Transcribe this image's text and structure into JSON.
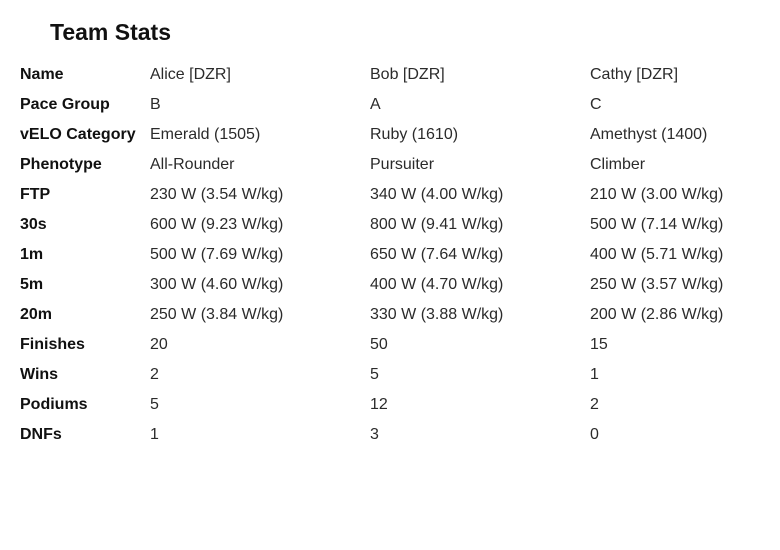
{
  "title": "Team Stats",
  "rows": [
    {
      "label": "Name",
      "values": [
        "Alice [DZR]",
        "Bob [DZR]",
        "Cathy [DZR]"
      ]
    },
    {
      "label": "Pace Group",
      "values": [
        "B",
        "A",
        "C"
      ]
    },
    {
      "label": "vELO Category",
      "values": [
        "Emerald (1505)",
        "Ruby (1610)",
        "Amethyst (1400)"
      ]
    },
    {
      "label": "Phenotype",
      "values": [
        "All-Rounder",
        "Pursuiter",
        "Climber"
      ]
    },
    {
      "label": "FTP",
      "values": [
        "230 W (3.54 W/kg)",
        "340 W (4.00 W/kg)",
        "210 W (3.00 W/kg)"
      ]
    },
    {
      "label": "30s",
      "values": [
        "600 W (9.23 W/kg)",
        "800 W (9.41 W/kg)",
        "500 W (7.14 W/kg)"
      ]
    },
    {
      "label": "1m",
      "values": [
        "500 W (7.69 W/kg)",
        "650 W (7.64 W/kg)",
        "400 W (5.71 W/kg)"
      ]
    },
    {
      "label": "5m",
      "values": [
        "300 W (4.60 W/kg)",
        "400 W (4.70 W/kg)",
        "250 W (3.57 W/kg)"
      ]
    },
    {
      "label": "20m",
      "values": [
        "250 W (3.84 W/kg)",
        "330 W (3.88 W/kg)",
        "200 W (2.86 W/kg)"
      ]
    },
    {
      "label": "Finishes",
      "values": [
        "20",
        "50",
        "15"
      ]
    },
    {
      "label": "Wins",
      "values": [
        "2",
        "5",
        "1"
      ]
    },
    {
      "label": "Podiums",
      "values": [
        "5",
        "12",
        "2"
      ]
    },
    {
      "label": "DNFs",
      "values": [
        "1",
        "3",
        "0"
      ]
    }
  ]
}
